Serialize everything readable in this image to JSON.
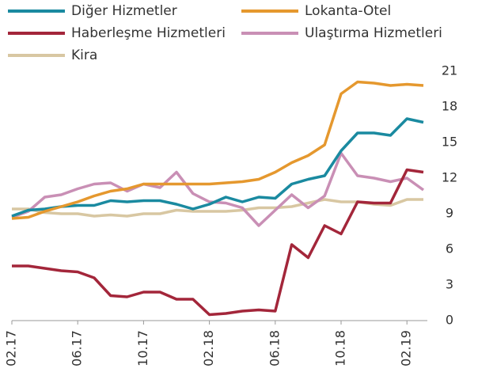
{
  "chart_data": {
    "type": "line",
    "categories": [
      "02.17",
      null,
      null,
      null,
      "06.17",
      null,
      null,
      null,
      "10.17",
      null,
      null,
      null,
      "02.18",
      null,
      null,
      null,
      "06.18",
      null,
      null,
      null,
      "10.18",
      null,
      null,
      null,
      "02.19",
      null
    ],
    "series": [
      {
        "name": "Diğer Hizmetler",
        "color": "#1a8aa0",
        "values": [
          8.8,
          9.3,
          9.4,
          9.6,
          9.7,
          9.7,
          10.1,
          10.0,
          10.1,
          10.1,
          9.8,
          9.4,
          9.8,
          10.4,
          10.0,
          10.4,
          10.3,
          11.5,
          11.9,
          12.2,
          14.3,
          15.8,
          15.8,
          15.6,
          17.0,
          16.7
        ]
      },
      {
        "name": "Lokanta-Otel",
        "color": "#e5982e",
        "values": [
          8.6,
          8.7,
          9.2,
          9.6,
          10.0,
          10.5,
          10.9,
          11.1,
          11.5,
          11.5,
          11.5,
          11.5,
          11.5,
          11.6,
          11.7,
          11.9,
          12.5,
          13.3,
          13.9,
          14.8,
          19.1,
          20.1,
          20.0,
          19.8,
          19.9,
          19.8
        ]
      },
      {
        "name": "Haberleşme Hizmetleri",
        "color": "#a3263a",
        "values": [
          4.6,
          4.6,
          4.4,
          4.2,
          4.1,
          3.6,
          2.1,
          2.0,
          2.4,
          2.4,
          1.8,
          1.8,
          0.5,
          0.6,
          0.8,
          0.9,
          0.8,
          6.4,
          5.3,
          8.0,
          7.3,
          10.0,
          9.9,
          9.9,
          12.7,
          12.5
        ]
      },
      {
        "name": "Ulaştırma Hizmetleri",
        "color": "#c98fb5",
        "values": [
          8.7,
          9.2,
          10.4,
          10.6,
          11.1,
          11.5,
          11.6,
          10.9,
          11.5,
          11.2,
          12.5,
          10.7,
          10.0,
          9.9,
          9.5,
          8.0,
          9.3,
          10.6,
          9.5,
          10.5,
          14.1,
          12.2,
          12.0,
          11.7,
          12.0,
          11.0
        ]
      },
      {
        "name": "Kira",
        "color": "#d8c7a2",
        "values": [
          9.4,
          9.4,
          9.1,
          9.0,
          9.0,
          8.8,
          8.9,
          8.8,
          9.0,
          9.0,
          9.3,
          9.2,
          9.2,
          9.2,
          9.3,
          9.5,
          9.5,
          9.6,
          9.9,
          10.2,
          10.0,
          10.0,
          9.8,
          9.7,
          10.2,
          10.2
        ]
      }
    ],
    "ylim": [
      0,
      21
    ],
    "yticks": [
      0,
      3,
      6,
      9,
      12,
      15,
      18,
      21
    ],
    "y_axis_side": "right",
    "legend": "top"
  }
}
